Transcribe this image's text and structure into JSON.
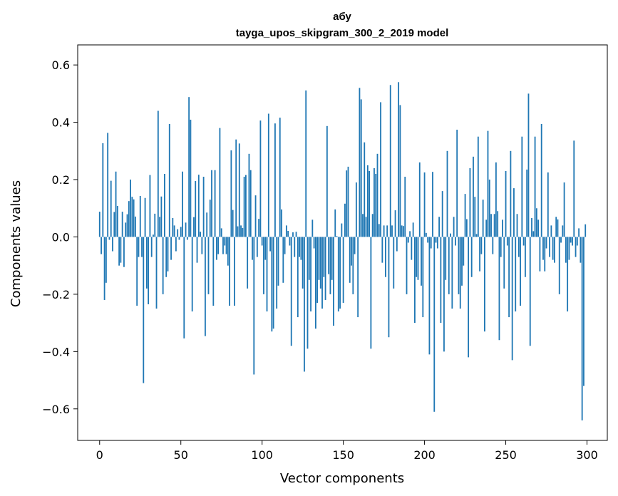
{
  "chart_data": {
    "type": "bar",
    "title": "абу",
    "subtitle": "tayga_upos_skipgram_300_2_2019 model",
    "xlabel": "Vector components",
    "ylabel": "Components values",
    "xlim": [
      -13.5,
      312.5
    ],
    "ylim": [
      -0.71,
      0.67
    ],
    "xticks": [
      0,
      50,
      100,
      150,
      200,
      250,
      300
    ],
    "yticks": [
      -0.6,
      -0.4,
      -0.2,
      0.0,
      0.2,
      0.4,
      0.6
    ],
    "ytick_labels": [
      "−0.6",
      "−0.4",
      "−0.2",
      "0.0",
      "0.2",
      "0.4",
      "0.6"
    ],
    "grid": false,
    "color": "#1f77b4",
    "x_start": 0,
    "values": [
      0.088,
      -0.06,
      0.327,
      -0.22,
      -0.16,
      0.363,
      -0.01,
      0.196,
      -0.05,
      0.087,
      0.228,
      0.108,
      -0.1,
      -0.09,
      0.088,
      -0.105,
      0.05,
      0.079,
      0.125,
      0.2,
      0.14,
      0.131,
      0.071,
      -0.24,
      -0.07,
      0.143,
      -0.07,
      -0.51,
      0.136,
      -0.18,
      -0.235,
      0.216,
      -0.07,
      0.008,
      0.081,
      -0.25,
      0.44,
      0.07,
      0.141,
      -0.2,
      0.22,
      -0.14,
      -0.12,
      0.394,
      -0.08,
      0.066,
      0.04,
      -0.05,
      0.027,
      -0.01,
      0.035,
      0.228,
      -0.354,
      0.05,
      -0.01,
      0.488,
      0.409,
      -0.26,
      0.069,
      0.195,
      -0.09,
      0.217,
      0.018,
      -0.06,
      0.21,
      -0.346,
      0.085,
      -0.2,
      0.13,
      0.233,
      -0.24,
      0.233,
      -0.08,
      -0.06,
      0.38,
      0.03,
      -0.06,
      -0.03,
      -0.06,
      -0.1,
      -0.24,
      0.302,
      0.094,
      -0.24,
      0.34,
      0.037,
      0.326,
      0.04,
      0.031,
      0.21,
      0.216,
      -0.18,
      0.29,
      0.233,
      -0.08,
      -0.48,
      0.145,
      -0.07,
      0.063,
      0.406,
      -0.03,
      -0.2,
      -0.08,
      -0.26,
      0.43,
      -0.05,
      -0.33,
      -0.32,
      0.396,
      -0.25,
      -0.17,
      0.416,
      0.096,
      -0.16,
      -0.06,
      0.04,
      0.021,
      -0.03,
      -0.38,
      0.016,
      -0.07,
      0.018,
      -0.28,
      -0.07,
      -0.08,
      -0.18,
      -0.47,
      0.511,
      -0.39,
      -0.15,
      -0.26,
      0.06,
      -0.04,
      -0.32,
      -0.23,
      -0.15,
      -0.18,
      -0.25,
      -0.14,
      -0.22,
      0.387,
      -0.13,
      -0.2,
      -0.15,
      -0.31,
      0.096,
      0.003,
      -0.26,
      -0.25,
      0.047,
      -0.23,
      0.116,
      0.232,
      0.245,
      -0.16,
      -0.1,
      -0.2,
      -0.06,
      0.19,
      -0.28,
      0.52,
      0.48,
      0.08,
      0.33,
      0.07,
      0.25,
      0.23,
      -0.39,
      0.08,
      0.24,
      0.22,
      0.29,
      0.045,
      0.47,
      -0.09,
      0.04,
      -0.14,
      0.04,
      -0.35,
      0.53,
      0.04,
      -0.18,
      0.093,
      -0.05,
      0.54,
      0.46,
      0.04,
      0.038,
      0.21,
      -0.2,
      -0.02,
      0.02,
      -0.08,
      0.05,
      -0.3,
      -0.14,
      -0.15,
      0.26,
      -0.17,
      -0.28,
      0.225,
      0.014,
      -0.02,
      -0.41,
      -0.04,
      0.227,
      -0.61,
      -0.02,
      -0.04,
      0.07,
      -0.3,
      0.16,
      -0.4,
      -0.15,
      0.3,
      -0.2,
      0.012,
      -0.25,
      0.07,
      -0.03,
      0.374,
      -0.2,
      -0.25,
      -0.17,
      -0.1,
      0.15,
      0.062,
      -0.42,
      0.24,
      -0.14,
      0.28,
      0.14,
      0.01,
      0.35,
      -0.12,
      -0.06,
      0.13,
      -0.33,
      0.06,
      0.37,
      0.2,
      0.08,
      -0.06,
      0.08,
      0.26,
      0.09,
      -0.36,
      -0.07,
      0.06,
      -0.18,
      0.23,
      -0.03,
      -0.28,
      0.3,
      -0.43,
      0.17,
      -0.26,
      0.08,
      -0.07,
      -0.24,
      0.35,
      -0.03,
      -0.14,
      0.235,
      0.5,
      -0.38,
      0.066,
      0.02,
      0.35,
      0.1,
      0.06,
      -0.12,
      0.394,
      -0.08,
      -0.12,
      -0.04,
      0.225,
      -0.07,
      0.04,
      -0.08,
      -0.09,
      0.07,
      0.061,
      -0.2,
      -0.02,
      0.04,
      0.19,
      -0.09,
      -0.26,
      -0.08,
      -0.02,
      -0.03,
      0.336,
      -0.07,
      -0.03,
      0.03,
      -0.09,
      -0.64,
      -0.52,
      0.044
    ]
  }
}
